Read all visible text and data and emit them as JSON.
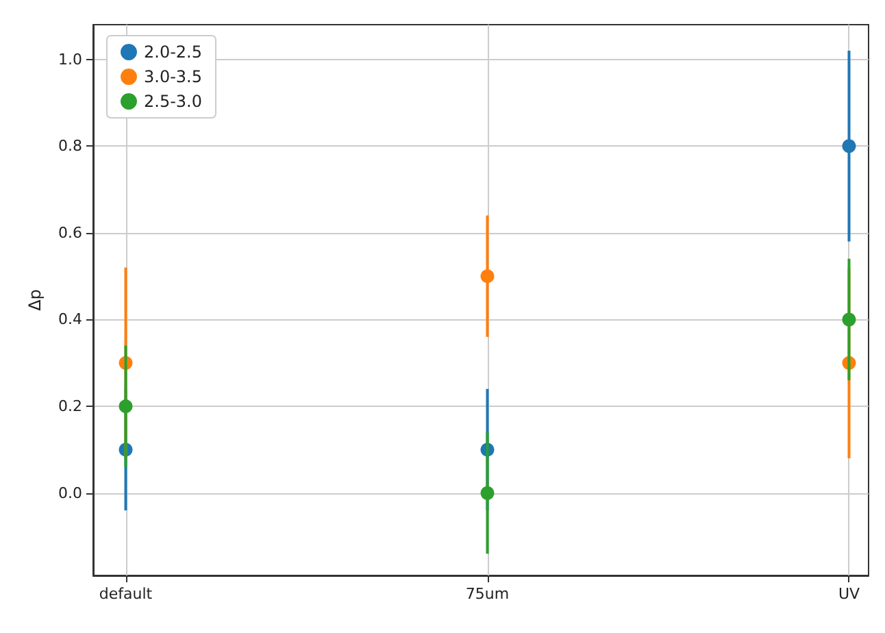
{
  "chart_data": {
    "type": "scatter",
    "ylabel": "Δp",
    "categories": [
      "default",
      "75um",
      "UV"
    ],
    "series": [
      {
        "name": "2.0-2.5",
        "color": "#1f77b4",
        "values": [
          0.1,
          0.1,
          0.8
        ],
        "errors": [
          0.14,
          0.14,
          0.22
        ]
      },
      {
        "name": "3.0-3.5",
        "color": "#ff7f0e",
        "values": [
          0.3,
          0.5,
          0.3
        ],
        "errors": [
          0.22,
          0.14,
          0.22
        ]
      },
      {
        "name": "2.5-3.0",
        "color": "#2ca02c",
        "values": [
          0.2,
          0.0,
          0.4
        ],
        "errors": [
          0.14,
          0.14,
          0.14
        ]
      }
    ],
    "ylim": [
      -0.19,
      1.08
    ],
    "yticks": [
      {
        "value": 0,
        "label": "0.0"
      },
      {
        "value": 0.2,
        "label": "0.2"
      },
      {
        "value": 0.4,
        "label": "0.4"
      },
      {
        "value": 0.6,
        "label": "0.6"
      },
      {
        "value": 0.8,
        "label": "0.8"
      },
      {
        "value": 1,
        "label": "1.0"
      }
    ],
    "grid": true,
    "legend": "top left",
    "marker": "circle"
  }
}
